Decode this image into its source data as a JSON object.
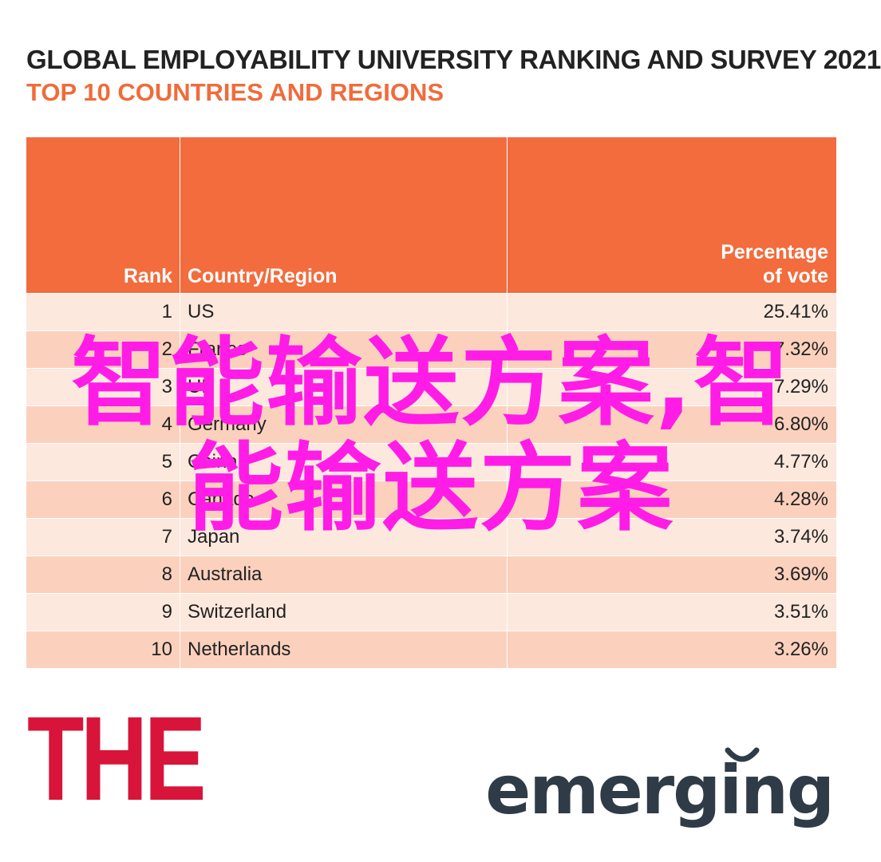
{
  "chart_data": {
    "type": "table",
    "title": "GLOBAL EMPLOYABILITY UNIVERSITY RANKING AND SURVEY 2021",
    "subtitle": "TOP 10 COUNTRIES AND REGIONS",
    "columns": {
      "rank": "Rank",
      "country": "Country/Region",
      "pct_line1": "Percentage",
      "pct_line2": "of vote"
    },
    "rows": [
      {
        "rank": "1",
        "country": "US",
        "pct": "25.41%"
      },
      {
        "rank": "2",
        "country": "France",
        "pct": "7.32%"
      },
      {
        "rank": "3",
        "country": "UK",
        "pct": "7.29%"
      },
      {
        "rank": "4",
        "country": "Germany",
        "pct": "6.80%"
      },
      {
        "rank": "5",
        "country": "China",
        "pct": "4.77%"
      },
      {
        "rank": "6",
        "country": "Canada",
        "pct": "4.28%"
      },
      {
        "rank": "7",
        "country": "Japan",
        "pct": "3.74%"
      },
      {
        "rank": "8",
        "country": "Australia",
        "pct": "3.69%"
      },
      {
        "rank": "9",
        "country": "Switzerland",
        "pct": "3.51%"
      },
      {
        "rank": "10",
        "country": "Netherlands",
        "pct": "3.26%"
      }
    ]
  },
  "logos": {
    "the": "THE",
    "emerging": "emerging"
  },
  "watermark": {
    "line1": "智能输送方案,智",
    "line2": "能输送方案"
  },
  "colors": {
    "header": "#f26c3e",
    "row_light": "#fde8dd",
    "row_dark": "#fbd1bd",
    "subtitle": "#ef6c3b",
    "the_logo": "#d8143a",
    "emerging_logo": "#2f3c47",
    "watermark": "#ff1ce6"
  }
}
